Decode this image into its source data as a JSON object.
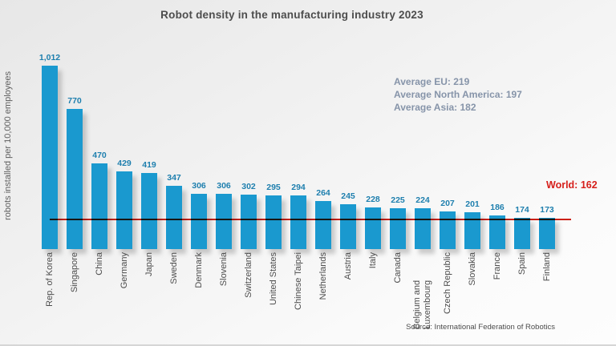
{
  "title": "Robot density in the manufacturing industry 2023",
  "ylabel": "robots installed per 10,000 employees",
  "source": "Source: International Federation of Robotics",
  "annotations": {
    "avg_eu": "Average EU: 219",
    "avg_north_america": "Average North America: 197",
    "avg_asia": "Average Asia: 182",
    "world": "World: 162"
  },
  "colors": {
    "bar": "#1a99cf",
    "value_label": "#1e7fae",
    "world_line": "#d02015",
    "world_label": "#d6201c",
    "annotation_text": "#8694a9",
    "title_text": "#4d4d4d"
  },
  "chart_data": {
    "type": "bar",
    "title": "Robot density in the manufacturing industry 2023",
    "xlabel": "",
    "ylabel": "robots installed per 10,000 employees",
    "ylim": [
      0,
      1050
    ],
    "grid": false,
    "legend": "none",
    "categories": [
      "Rep. of Korea",
      "Singapore",
      "China",
      "Germany",
      "Japan",
      "Sweden",
      "Denmark",
      "Slovenia",
      "Switzerland",
      "United States",
      "Chinese Taipei",
      "Netherlands",
      "Austria",
      "Italy",
      "Canada",
      "Belgium and Luxembourg",
      "Czech Republic",
      "Slovakia",
      "France",
      "Spain",
      "Finland"
    ],
    "values": [
      1012,
      770,
      470,
      429,
      419,
      347,
      306,
      306,
      302,
      295,
      294,
      264,
      245,
      228,
      225,
      224,
      207,
      201,
      186,
      174,
      173
    ],
    "value_labels": [
      "1,012",
      "770",
      "470",
      "429",
      "419",
      "347",
      "306",
      "306",
      "302",
      "295",
      "294",
      "264",
      "245",
      "228",
      "225",
      "224",
      "207",
      "201",
      "186",
      "174",
      "173"
    ],
    "reference_line": {
      "label": "World: 162",
      "value": 162
    },
    "annotations": [
      "Average EU: 219",
      "Average North America: 197",
      "Average Asia: 182"
    ],
    "source": "Source: International Federation of Robotics"
  }
}
